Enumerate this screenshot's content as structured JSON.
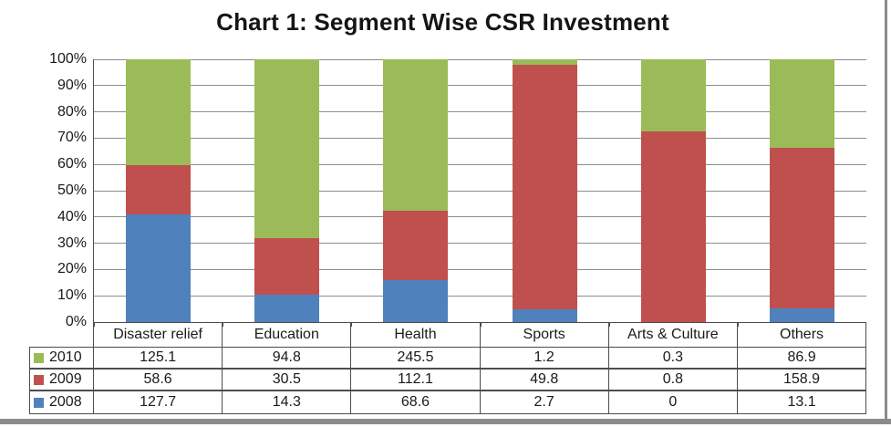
{
  "title": "Chart 1: Segment Wise CSR Investment",
  "chart_data": {
    "type": "bar",
    "subtype": "100-percent-stacked-column",
    "title": "Chart 1: Segment Wise CSR Investment",
    "categories": [
      "Disaster relief",
      "Education",
      "Health",
      "Sports",
      "Arts & Culture",
      "Others"
    ],
    "series": [
      {
        "name": "2010",
        "color": "#9BBB59",
        "values": [
          125.1,
          94.8,
          245.5,
          1.2,
          0.3,
          86.9
        ]
      },
      {
        "name": "2009",
        "color": "#C0504D",
        "values": [
          58.6,
          30.5,
          112.1,
          49.8,
          0.8,
          158.9
        ]
      },
      {
        "name": "2008",
        "color": "#4F81BD",
        "values": [
          127.7,
          14.3,
          68.6,
          2.7,
          0,
          13.1
        ]
      }
    ],
    "y_ticks": [
      "100%",
      "90%",
      "80%",
      "70%",
      "60%",
      "50%",
      "40%",
      "30%",
      "20%",
      "10%",
      "0%"
    ],
    "ylim": [
      0,
      100
    ],
    "grid": true,
    "legend_position": "table-left-keys",
    "data_table_shown": true
  },
  "colors": {
    "grid": "#8D8D8D",
    "axis": "#4D4D4D",
    "table_border": "#4D4D4D",
    "frame": "#8B8B8B",
    "text": "#1A1A1A",
    "background": "#FFFFFF"
  }
}
